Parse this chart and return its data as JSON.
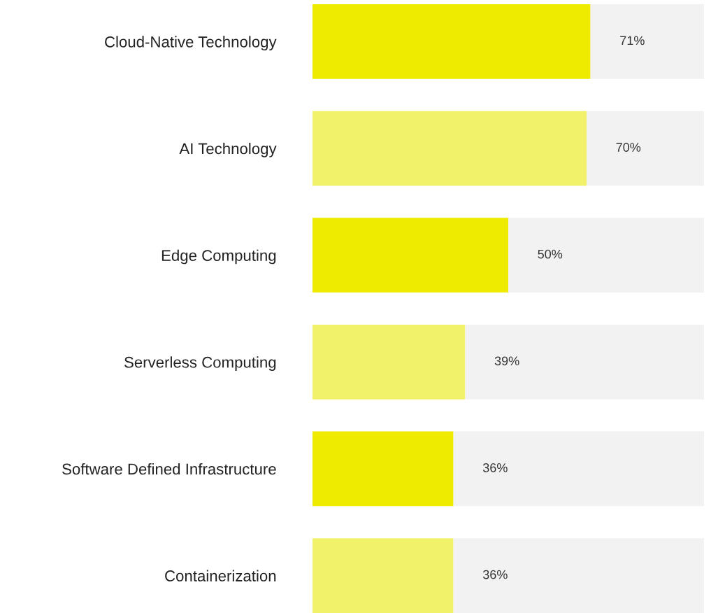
{
  "chart_data": {
    "type": "bar",
    "orientation": "horizontal",
    "stacked": true,
    "categories": [
      "Cloud-Native Technology",
      "AI Technology",
      "Edge Computing",
      "Serverless Computing",
      "Software Defined Infrastructure",
      "Containerization"
    ],
    "series": [
      {
        "colors": [
          "#eeea00",
          "#f2f26a",
          "#eeea00",
          "#f2f26a",
          "#eeea00",
          "#f2f26a"
        ],
        "values": [
          71,
          70,
          50,
          39,
          36,
          36
        ],
        "value_labels": [
          "71%",
          "70%",
          "50%",
          "39%",
          "36%",
          "36%"
        ]
      },
      {
        "color": "#f2f2f2",
        "values": [
          29,
          30,
          50,
          61,
          64,
          64
        ]
      }
    ],
    "xlim": [
      0,
      100
    ],
    "tick_labels": "y",
    "grid": false,
    "legend": false
  }
}
